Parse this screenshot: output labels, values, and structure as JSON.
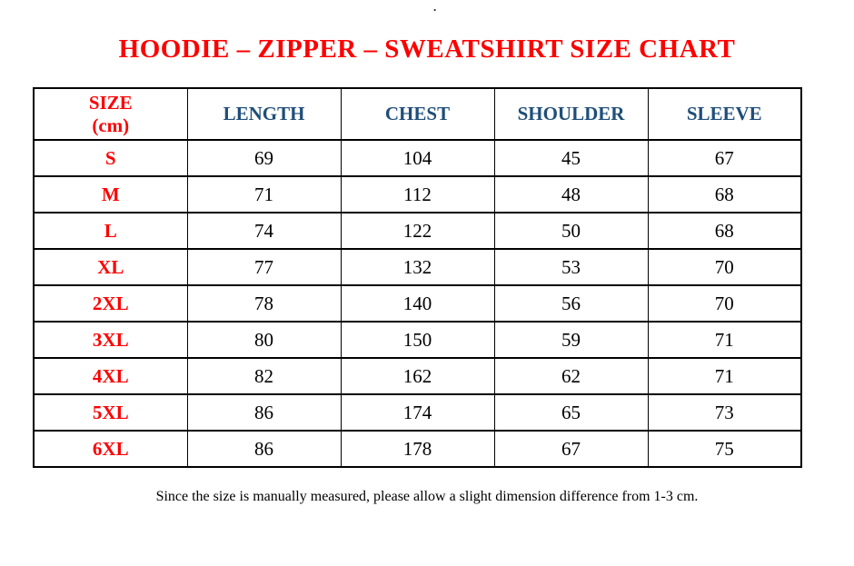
{
  "page": {
    "top_mark": ".",
    "title": "HOODIE – ZIPPER – SWEATSHIRT SIZE CHART",
    "footnote": "Since the size is manually measured, please allow a slight dimension difference from 1-3 cm."
  },
  "colors": {
    "title_red": "#fe0000",
    "header_blue": "#1f4e79",
    "body_black": "#000000",
    "border_black": "#000000",
    "background": "#ffffff"
  },
  "table": {
    "header": {
      "size_line1": "SIZE",
      "size_line2": "(cm)",
      "length": "LENGTH",
      "chest": "CHEST",
      "shoulder": "SHOULDER",
      "sleeve": "SLEEVE"
    },
    "columns_order": [
      "size",
      "length",
      "chest",
      "shoulder",
      "sleeve"
    ],
    "rows": [
      {
        "size": "S",
        "length": "69",
        "chest": "104",
        "shoulder": "45",
        "sleeve": "67"
      },
      {
        "size": "M",
        "length": "71",
        "chest": "112",
        "shoulder": "48",
        "sleeve": "68"
      },
      {
        "size": "L",
        "length": "74",
        "chest": "122",
        "shoulder": "50",
        "sleeve": "68"
      },
      {
        "size": "XL",
        "length": "77",
        "chest": "132",
        "shoulder": "53",
        "sleeve": "70"
      },
      {
        "size": "2XL",
        "length": "78",
        "chest": "140",
        "shoulder": "56",
        "sleeve": "70"
      },
      {
        "size": "3XL",
        "length": "80",
        "chest": "150",
        "shoulder": "59",
        "sleeve": "71"
      },
      {
        "size": "4XL",
        "length": "82",
        "chest": "162",
        "shoulder": "62",
        "sleeve": "71"
      },
      {
        "size": "5XL",
        "length": "86",
        "chest": "174",
        "shoulder": "65",
        "sleeve": "73"
      },
      {
        "size": "6XL",
        "length": "86",
        "chest": "178",
        "shoulder": "67",
        "sleeve": "75"
      }
    ]
  }
}
